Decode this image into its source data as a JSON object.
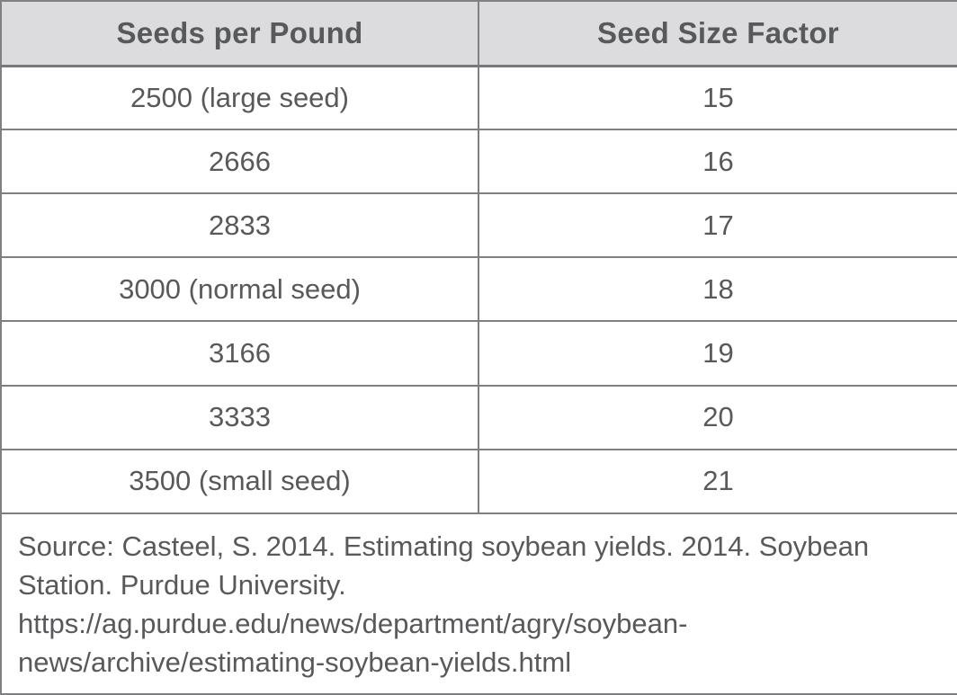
{
  "table": {
    "columns": [
      {
        "label": "Seeds per Pound"
      },
      {
        "label": "Seed Size Factor"
      }
    ],
    "rows": [
      {
        "seeds_per_pound": "2500 (large seed)",
        "seed_size_factor": "15"
      },
      {
        "seeds_per_pound": "2666",
        "seed_size_factor": "16"
      },
      {
        "seeds_per_pound": "2833",
        "seed_size_factor": "17"
      },
      {
        "seeds_per_pound": "3000 (normal seed)",
        "seed_size_factor": "18"
      },
      {
        "seeds_per_pound": "3166",
        "seed_size_factor": "19"
      },
      {
        "seeds_per_pound": "3333",
        "seed_size_factor": "20"
      },
      {
        "seeds_per_pound": "3500 (small seed)",
        "seed_size_factor": "21"
      }
    ],
    "source": "Source: Casteel, S. 2014. Estimating soybean yields. 2014. Soybean Station. Purdue University. https://ag.purdue.edu/news/department/agry/soybean-news/archive/estimating-soybean-yields.html"
  },
  "colors": {
    "header_background": "#dcdcde",
    "text": "#58595b",
    "border": "#7f8082",
    "row_background": "#ffffff"
  }
}
